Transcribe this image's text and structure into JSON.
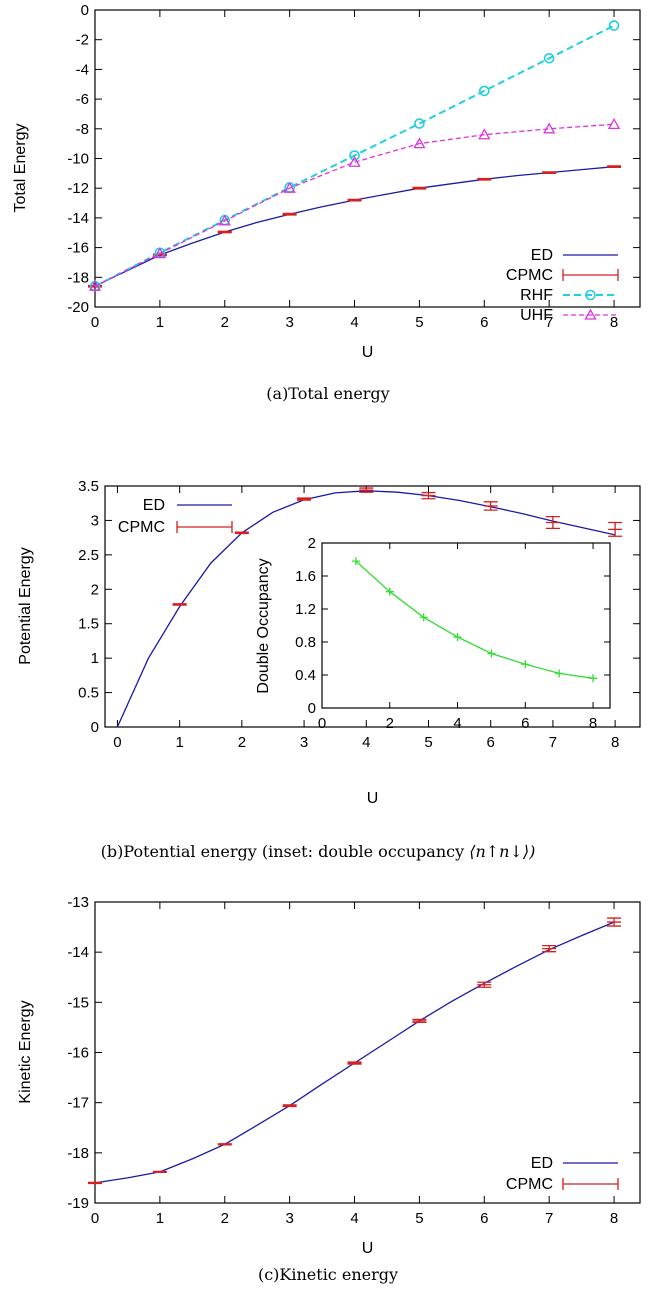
{
  "chart_data": [
    {
      "type": "line",
      "id": "total",
      "caption": "(a)Total energy",
      "xlabel": "U",
      "ylabel": "Total Energy",
      "xlim": [
        0,
        8.4
      ],
      "ylim": [
        -20,
        0
      ],
      "xticks": [
        "0",
        "1",
        "2",
        "3",
        "4",
        "5",
        "6",
        "7",
        "8"
      ],
      "yticks": [
        "-20",
        "-18",
        "-16",
        "-14",
        "-12",
        "-10",
        "-8",
        "-6",
        "-4",
        "-2",
        "0"
      ],
      "legend_position": "bottom-right",
      "series": [
        {
          "name": "ED",
          "color": "#1a1aa8",
          "style": "solid",
          "marker": "none",
          "x": [
            0,
            0.5,
            1,
            1.5,
            2,
            2.5,
            3,
            3.5,
            4,
            4.5,
            5,
            5.5,
            6,
            6.5,
            7,
            7.5,
            8
          ],
          "y": [
            -18.6,
            -17.55,
            -16.5,
            -15.7,
            -14.95,
            -14.3,
            -13.75,
            -13.25,
            -12.8,
            -12.4,
            -12.0,
            -11.7,
            -11.4,
            -11.15,
            -10.95,
            -10.75,
            -10.55
          ]
        },
        {
          "name": "CPMC",
          "color": "#d42020",
          "style": "errorbar",
          "marker": "bar",
          "x": [
            0,
            1,
            2,
            3,
            4,
            5,
            6,
            7,
            8
          ],
          "y": [
            -18.6,
            -16.5,
            -14.95,
            -13.75,
            -12.8,
            -12.0,
            -11.4,
            -10.95,
            -10.55
          ],
          "err": [
            0.05,
            0.05,
            0.05,
            0.05,
            0.05,
            0.05,
            0.05,
            0.05,
            0.05
          ]
        },
        {
          "name": "RHF",
          "color": "#20d0e0",
          "style": "dashed",
          "marker": "circle",
          "x": [
            0,
            1,
            2,
            3,
            4,
            5,
            6,
            7,
            8
          ],
          "y": [
            -18.6,
            -16.35,
            -14.15,
            -11.95,
            -9.8,
            -7.65,
            -5.45,
            -3.25,
            -1.05
          ]
        },
        {
          "name": "UHF",
          "color": "#dd33dd",
          "style": "dashed",
          "marker": "triangle",
          "x": [
            0,
            1,
            2,
            3,
            4,
            5,
            6,
            7,
            8
          ],
          "y": [
            -18.6,
            -16.4,
            -14.2,
            -12.0,
            -10.25,
            -9.0,
            -8.4,
            -8.0,
            -7.7
          ]
        }
      ]
    },
    {
      "type": "line",
      "id": "potential",
      "caption": "(b)Potential energy (inset: double occupancy ",
      "caption_math": "⟨n↑n↓⟩)",
      "xlabel": "U",
      "ylabel": "Potential Energy",
      "xlim": [
        -0.2,
        8.4
      ],
      "ylim": [
        0,
        3.5
      ],
      "xticks": [
        "0",
        "1",
        "2",
        "3",
        "4",
        "5",
        "6",
        "7",
        "8"
      ],
      "yticks": [
        "0",
        "0.5",
        "1",
        "1.5",
        "2",
        "2.5",
        "3",
        "3.5"
      ],
      "legend_position": "top-left",
      "series": [
        {
          "name": "ED",
          "color": "#1a1aa8",
          "style": "solid",
          "marker": "none",
          "x": [
            0,
            0.5,
            1,
            1.5,
            2,
            2.5,
            3,
            3.5,
            4,
            4.5,
            5,
            5.5,
            6,
            6.5,
            7,
            7.5,
            8
          ],
          "y": [
            0,
            1.0,
            1.75,
            2.38,
            2.82,
            3.12,
            3.3,
            3.4,
            3.43,
            3.41,
            3.36,
            3.29,
            3.2,
            3.1,
            2.99,
            2.89,
            2.79
          ]
        },
        {
          "name": "CPMC",
          "color": "#d42020",
          "style": "errorbar",
          "marker": "bar",
          "x": [
            1,
            2,
            3,
            4,
            5,
            6,
            7,
            8
          ],
          "y": [
            1.78,
            2.82,
            3.31,
            3.44,
            3.36,
            3.21,
            2.97,
            2.87
          ],
          "err": [
            0.01,
            0.01,
            0.015,
            0.03,
            0.045,
            0.06,
            0.085,
            0.1
          ]
        }
      ]
    },
    {
      "type": "line",
      "id": "inset",
      "xlabel": "",
      "ylabel": "Double Occupancy",
      "xlim": [
        0,
        8.5
      ],
      "ylim": [
        0,
        2
      ],
      "xticks": [
        "0",
        "2",
        "4",
        "6",
        "8"
      ],
      "yticks": [
        "0",
        "0.4",
        "0.8",
        "1.2",
        "1.6",
        "2"
      ],
      "series": [
        {
          "color": "#33dd33",
          "style": "solid",
          "marker": "plus",
          "x": [
            1,
            2,
            3,
            4,
            5,
            6,
            7,
            8
          ],
          "y": [
            1.78,
            1.41,
            1.1,
            0.86,
            0.66,
            0.53,
            0.42,
            0.36
          ]
        }
      ]
    },
    {
      "type": "line",
      "id": "kinetic",
      "caption": "(c)Kinetic energy",
      "xlabel": "U",
      "ylabel": "Kinetic Energy",
      "xlim": [
        0,
        8.4
      ],
      "ylim": [
        -19,
        -13
      ],
      "xticks": [
        "0",
        "1",
        "2",
        "3",
        "4",
        "5",
        "6",
        "7",
        "8"
      ],
      "yticks": [
        "-19",
        "-18",
        "-17",
        "-16",
        "-15",
        "-14",
        "-13"
      ],
      "legend_position": "bottom-right",
      "series": [
        {
          "name": "ED",
          "color": "#1a1aa8",
          "style": "solid",
          "marker": "none",
          "x": [
            0,
            0.5,
            1,
            1.5,
            2,
            2.5,
            3,
            3.5,
            4,
            4.5,
            5,
            5.5,
            6,
            6.5,
            7,
            7.5,
            8
          ],
          "y": [
            -18.6,
            -18.5,
            -18.38,
            -18.12,
            -17.83,
            -17.45,
            -17.06,
            -16.63,
            -16.21,
            -15.79,
            -15.37,
            -14.98,
            -14.62,
            -14.28,
            -13.95,
            -13.67,
            -13.4
          ]
        },
        {
          "name": "CPMC",
          "color": "#d42020",
          "style": "errorbar",
          "marker": "bar",
          "x": [
            0,
            1,
            2,
            3,
            4,
            5,
            6,
            7,
            8
          ],
          "y": [
            -18.6,
            -18.38,
            -17.83,
            -17.06,
            -16.21,
            -15.37,
            -14.65,
            -13.93,
            -13.4
          ],
          "err": [
            0.01,
            0.01,
            0.01,
            0.015,
            0.02,
            0.03,
            0.05,
            0.06,
            0.08
          ]
        }
      ]
    }
  ]
}
